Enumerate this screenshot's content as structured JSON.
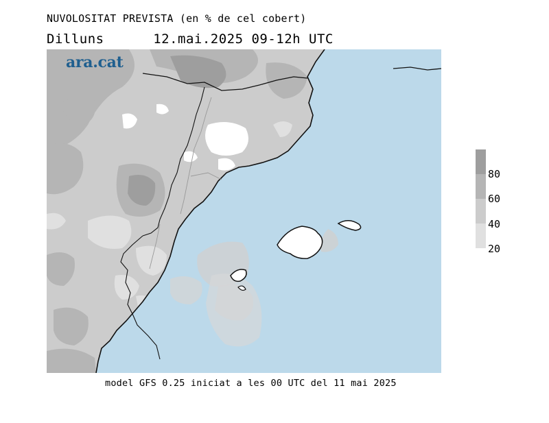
{
  "header": {
    "title": "NUVOLOSITAT PREVISTA (en % de cel cobert)",
    "day": "Dilluns",
    "datetime": "12.mai.2025 09-12h UTC"
  },
  "brand": {
    "logo_text": "ara.cat"
  },
  "map": {
    "sea_color": "#bcd9ea",
    "cloud_colors": [
      "#ffffff",
      "#e0e0e0",
      "#cccccc",
      "#b5b5b5",
      "#9e9e9e"
    ]
  },
  "legend": {
    "colors": [
      "#9e9e9e",
      "#b5b5b5",
      "#cccccc",
      "#e0e0e0"
    ],
    "labels": [
      "80",
      "60",
      "40",
      "20"
    ]
  },
  "footer": {
    "text": "model GFS 0.25 iniciat a les 00 UTC del 11 mai 2025"
  }
}
